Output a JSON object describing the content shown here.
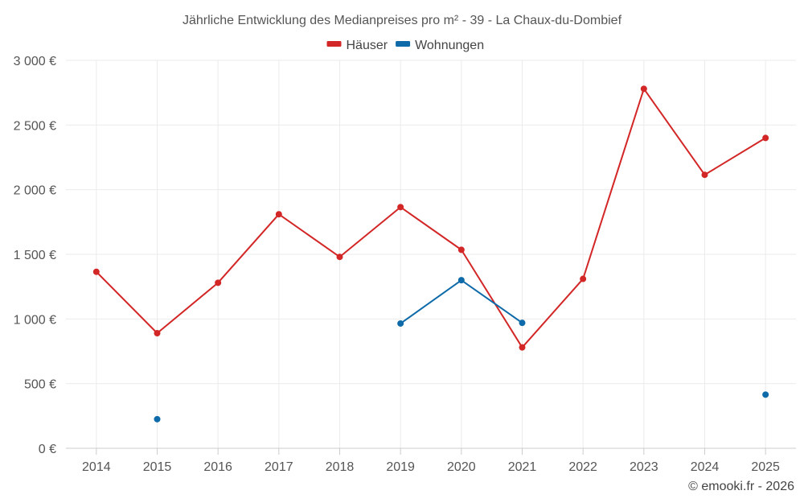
{
  "chart_data": {
    "type": "line",
    "title": "Jährliche Entwicklung des Medianpreises pro m² - 39 - La Chaux-du-Dombief",
    "categories": [
      "2014",
      "2015",
      "2016",
      "2017",
      "2018",
      "2019",
      "2020",
      "2021",
      "2022",
      "2023",
      "2024",
      "2025"
    ],
    "y_ticks": [
      0,
      500,
      1000,
      1500,
      2000,
      2500,
      3000
    ],
    "y_tick_labels": [
      "0 €",
      "500 €",
      "1 000 €",
      "1 500 €",
      "2 000 €",
      "2 500 €",
      "3 000 €"
    ],
    "ylim": [
      0,
      3000
    ],
    "grid": true,
    "legend_position": "top-center",
    "series": [
      {
        "name": "Häuser",
        "color": "#d32626",
        "values": [
          1365,
          890,
          1280,
          1810,
          1480,
          1865,
          1535,
          780,
          1310,
          2780,
          2115,
          2400
        ]
      },
      {
        "name": "Wohnungen",
        "color": "#0e6aa8",
        "values": [
          null,
          225,
          null,
          null,
          null,
          965,
          1300,
          970,
          null,
          null,
          null,
          415
        ]
      }
    ],
    "credit": "© emooki.fr - 2026"
  }
}
